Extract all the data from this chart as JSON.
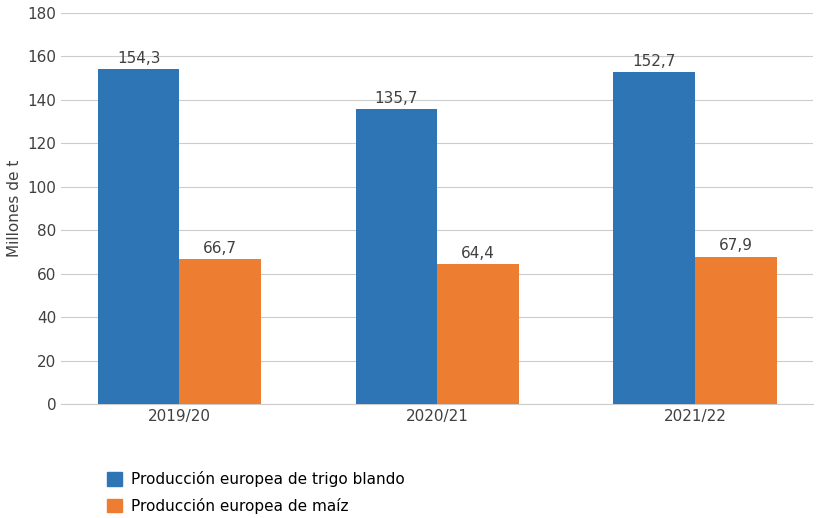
{
  "categories": [
    "2019/20",
    "2020/21",
    "2021/22"
  ],
  "series": [
    {
      "name": "Producción europea de trigo blando",
      "values": [
        154.3,
        135.7,
        152.7
      ],
      "color": "#2E75B6"
    },
    {
      "name": "Producción europea de maíz",
      "values": [
        66.7,
        64.4,
        67.9
      ],
      "color": "#ED7D31"
    }
  ],
  "ylabel": "Millones de t",
  "ylim": [
    0,
    180
  ],
  "yticks": [
    0,
    20,
    40,
    60,
    80,
    100,
    120,
    140,
    160,
    180
  ],
  "bar_width": 0.38,
  "background_color": "#FFFFFF",
  "grid_color": "#CCCCCC",
  "label_fontsize": 11,
  "tick_fontsize": 11,
  "legend_fontsize": 11,
  "annotation_fontsize": 11
}
